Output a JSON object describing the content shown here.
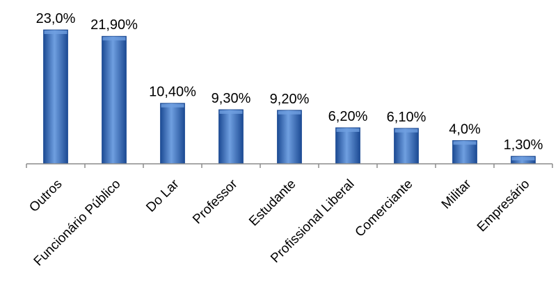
{
  "chart_data": {
    "type": "bar",
    "categories": [
      "Outros",
      "Funcionário Público",
      "Do Lar",
      "Professor",
      "Estudante",
      "Profissional Liberal",
      "Comerciante",
      "Militar",
      "Empresário"
    ],
    "values": [
      23.0,
      21.9,
      10.4,
      9.3,
      9.2,
      6.2,
      6.1,
      4.0,
      1.3
    ],
    "data_labels": [
      "23,0%",
      "21,90%",
      "10,40%",
      "9,30%",
      "9,20%",
      "6,20%",
      "6,10%",
      "4,0%",
      "1,30%"
    ],
    "title": "",
    "xlabel": "",
    "ylabel": "",
    "ylim": [
      0,
      23.0
    ],
    "grid": false,
    "legend": "none",
    "colors": {
      "bar_light": "#6f9fe0",
      "bar_mid": "#3a73c8",
      "bar_dark": "#1c4a93",
      "axis": "#8c8c8c"
    }
  }
}
